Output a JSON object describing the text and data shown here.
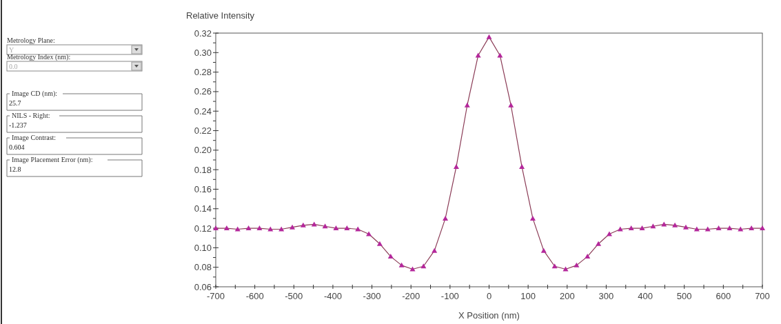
{
  "chart_data": [
    {
      "type": "other",
      "annotations": [
        "Metrology Plane:",
        "Y",
        "Metrology Index (nm):",
        "0.0",
        "Image CD (nm):",
        "25.7",
        "NILS - Right:",
        "-1.237",
        "Image Contrast:",
        "0.604",
        "Image Placement Error (nm):",
        "12.8"
      ]
    },
    {
      "type": "line",
      "title": "Relative Intensity",
      "xlabel": "X Position (nm)",
      "x": [
        -700,
        -672,
        -644,
        -616,
        -588,
        -560,
        -532,
        -504,
        -476,
        -448,
        -420,
        -392,
        -364,
        -336,
        -308,
        -280,
        -252,
        -224,
        -196,
        -168,
        -140,
        -112,
        -84,
        -56,
        -28,
        0,
        28,
        56,
        84,
        112,
        140,
        168,
        196,
        224,
        252,
        280,
        308,
        336,
        364,
        392,
        420,
        448,
        476,
        504,
        532,
        560,
        588,
        616,
        644,
        672,
        700
      ],
      "series": [
        {
          "color": "#b4279b",
          "values": [
            0.12,
            0.12,
            0.119,
            0.12,
            0.12,
            0.119,
            0.119,
            0.121,
            0.123,
            0.124,
            0.122,
            0.12,
            0.12,
            0.119,
            0.114,
            0.104,
            0.091,
            0.082,
            0.078,
            0.081,
            0.097,
            0.13,
            0.183,
            0.246,
            0.297,
            0.316,
            0.297,
            0.246,
            0.183,
            0.13,
            0.097,
            0.081,
            0.078,
            0.082,
            0.091,
            0.104,
            0.114,
            0.119,
            0.12,
            0.12,
            0.122,
            0.124,
            0.123,
            0.121,
            0.119,
            0.119,
            0.12,
            0.12,
            0.119,
            0.12,
            0.12
          ]
        }
      ],
      "xlim": [
        -700,
        700
      ],
      "xticks": [
        -700,
        {
          "value": -650,
          "label": null
        },
        -600,
        {
          "value": -550,
          "label": null
        },
        -500,
        {
          "value": -450,
          "label": null
        },
        -400,
        {
          "value": -350,
          "label": null
        },
        -300,
        {
          "value": -250,
          "label": null
        },
        -200,
        {
          "value": -150,
          "label": null
        },
        -100,
        {
          "value": -50,
          "label": null
        },
        0,
        {
          "value": 50,
          "label": null
        },
        100,
        {
          "value": 150,
          "label": null
        },
        200,
        {
          "value": 250,
          "label": null
        },
        300,
        {
          "value": 350,
          "label": null
        },
        400,
        {
          "value": 450,
          "label": null
        },
        500,
        {
          "value": 550,
          "label": null
        },
        600,
        {
          "value": 650,
          "label": null
        },
        700
      ],
      "ylim": [
        0.06,
        0.32
      ],
      "yticks": [
        {
          "value": 0.06,
          "label": "0.06"
        },
        {
          "value": 0.07,
          "label": null
        },
        {
          "value": 0.08,
          "label": "0.08"
        },
        {
          "value": 0.09,
          "label": null
        },
        {
          "value": 0.1,
          "label": "0.10"
        },
        {
          "value": 0.11,
          "label": null
        },
        {
          "value": 0.12,
          "label": "0.12"
        },
        {
          "value": 0.13,
          "label": null
        },
        {
          "value": 0.14,
          "label": "0.14"
        },
        {
          "value": 0.15,
          "label": null
        },
        {
          "value": 0.16,
          "label": "0.16"
        },
        {
          "value": 0.17,
          "label": null
        },
        {
          "value": 0.18,
          "label": "0.18"
        },
        {
          "value": 0.19,
          "label": null
        },
        {
          "value": 0.2,
          "label": "0.20"
        },
        {
          "value": 0.21,
          "label": null
        },
        {
          "value": 0.22,
          "label": "0.22"
        },
        {
          "value": 0.23,
          "label": null
        },
        {
          "value": 0.24,
          "label": "0.24"
        },
        {
          "value": 0.25,
          "label": null
        },
        {
          "value": 0.26,
          "label": "0.26"
        },
        {
          "value": 0.27,
          "label": null
        },
        {
          "value": 0.28,
          "label": "0.28"
        },
        {
          "value": 0.29,
          "label": null
        },
        {
          "value": 0.3,
          "label": "0.30"
        },
        {
          "value": 0.31,
          "label": null
        },
        {
          "value": 0.32,
          "label": "0.32"
        }
      ],
      "grid": false,
      "marker": "triangle",
      "line_style": "solid"
    }
  ]
}
